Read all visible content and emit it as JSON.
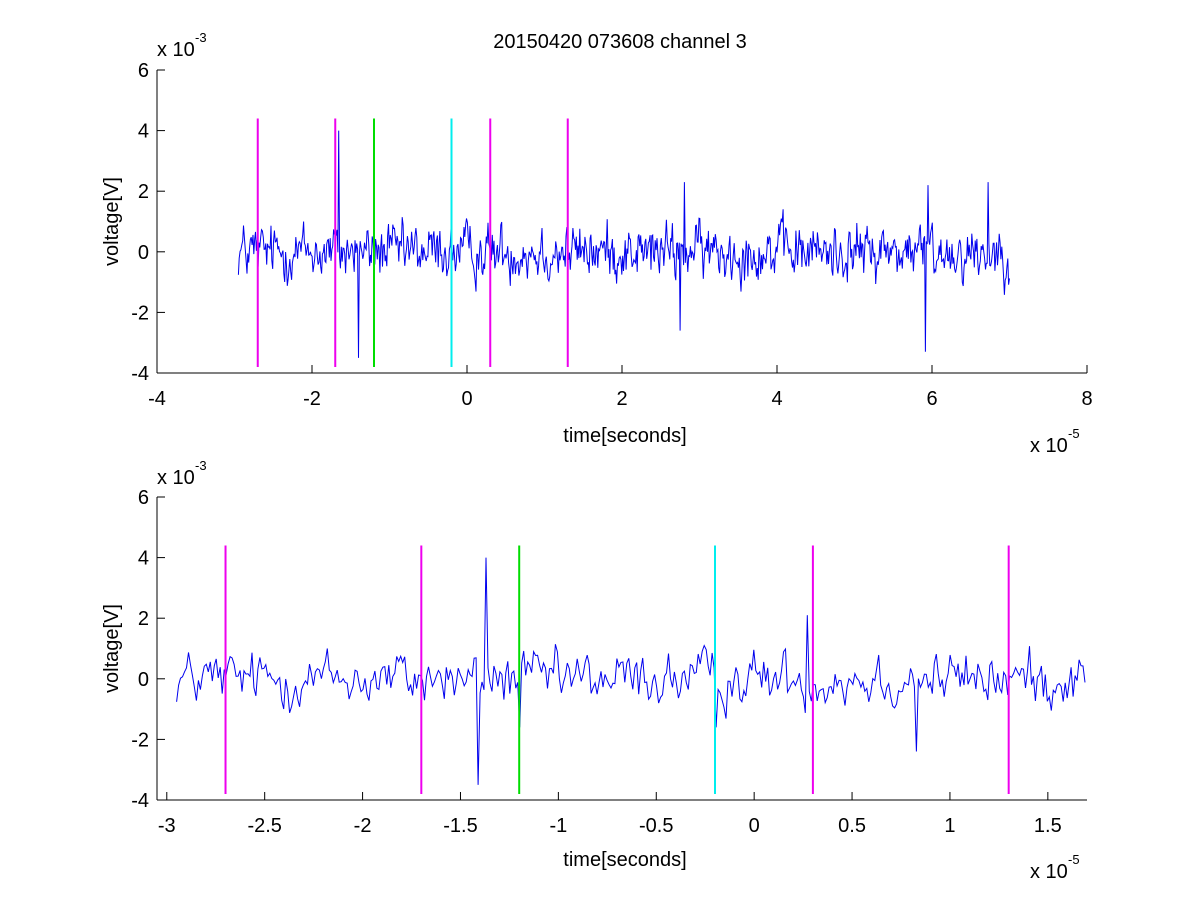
{
  "chart_data": [
    {
      "type": "line",
      "title": "20150420 073608 channel 3",
      "xlabel": "time[seconds]",
      "ylabel": "voltage[V]",
      "x_multiplier_label": "x 10",
      "x_multiplier_exp": "-5",
      "y_multiplier_label": "x 10",
      "y_multiplier_exp": "-3",
      "xlim": [
        -4,
        8
      ],
      "ylim": [
        -4,
        6
      ],
      "x_ticks": [
        -4,
        -2,
        0,
        2,
        4,
        6,
        8
      ],
      "x_tick_labels": [
        "-4",
        "-2",
        "0",
        "2",
        "4",
        "6",
        "8"
      ],
      "y_ticks": [
        -4,
        -2,
        0,
        2,
        4,
        6
      ],
      "y_tick_labels": [
        "-4",
        "-2",
        "0",
        "2",
        "4",
        "6"
      ],
      "grid": false,
      "signal": {
        "color": "#0000ee",
        "x_range": [
          -2.95,
          7.0
        ],
        "points": 900,
        "noise_amplitude": 0.55,
        "notable_extrema": [
          {
            "x": -1.65,
            "y": 4.0
          },
          {
            "x": -1.4,
            "y": -3.5
          },
          {
            "x": 2.8,
            "y": 2.3
          },
          {
            "x": 2.75,
            "y": -2.6
          },
          {
            "x": 5.95,
            "y": 2.2
          },
          {
            "x": 5.92,
            "y": -3.3
          },
          {
            "x": 6.72,
            "y": 2.3
          }
        ]
      },
      "markers": [
        {
          "x": -2.7,
          "color": "#ee00ee"
        },
        {
          "x": -1.7,
          "color": "#ee00ee"
        },
        {
          "x": -1.2,
          "color": "#00dd00"
        },
        {
          "x": -0.2,
          "color": "#00eeee"
        },
        {
          "x": 0.3,
          "color": "#ee00ee"
        },
        {
          "x": 1.3,
          "color": "#ee00ee"
        }
      ],
      "marker_range": [
        -3.8,
        4.4
      ]
    },
    {
      "type": "line",
      "title": "",
      "xlabel": "time[seconds]",
      "ylabel": "voltage[V]",
      "x_multiplier_label": "x 10",
      "x_multiplier_exp": "-5",
      "y_multiplier_label": "x 10",
      "y_multiplier_exp": "-3",
      "xlim": [
        -3.05,
        1.7
      ],
      "ylim": [
        -4,
        6
      ],
      "x_ticks": [
        -3,
        -2.5,
        -2,
        -1.5,
        -1,
        -0.5,
        0,
        0.5,
        1,
        1.5
      ],
      "x_tick_labels": [
        "-3",
        "-2.5",
        "-2",
        "-1.5",
        "-1",
        "-0.5",
        "0",
        "0.5",
        "1",
        "1.5"
      ],
      "y_ticks": [
        -4,
        -2,
        0,
        2,
        4,
        6
      ],
      "y_tick_labels": [
        "-4",
        "-2",
        "0",
        "2",
        "4",
        "6"
      ],
      "grid": false,
      "signal": {
        "color": "#0000ee",
        "x_range": [
          -2.95,
          1.7
        ],
        "points": 460,
        "noise_amplitude": 0.55,
        "notable_extrema": [
          {
            "x": -1.37,
            "y": 4.0
          },
          {
            "x": -1.41,
            "y": -3.5
          },
          {
            "x": -1.2,
            "y": -1.6
          },
          {
            "x": 0.27,
            "y": 2.1
          },
          {
            "x": 0.83,
            "y": -2.4
          },
          {
            "x": -0.19,
            "y": -1.6
          }
        ]
      },
      "markers": [
        {
          "x": -2.7,
          "color": "#ee00ee"
        },
        {
          "x": -1.7,
          "color": "#ee00ee"
        },
        {
          "x": -1.2,
          "color": "#00dd00"
        },
        {
          "x": -0.2,
          "color": "#00eeee"
        },
        {
          "x": 0.3,
          "color": "#ee00ee"
        },
        {
          "x": 1.3,
          "color": "#ee00ee"
        }
      ],
      "marker_range": [
        -3.8,
        4.4
      ]
    }
  ]
}
